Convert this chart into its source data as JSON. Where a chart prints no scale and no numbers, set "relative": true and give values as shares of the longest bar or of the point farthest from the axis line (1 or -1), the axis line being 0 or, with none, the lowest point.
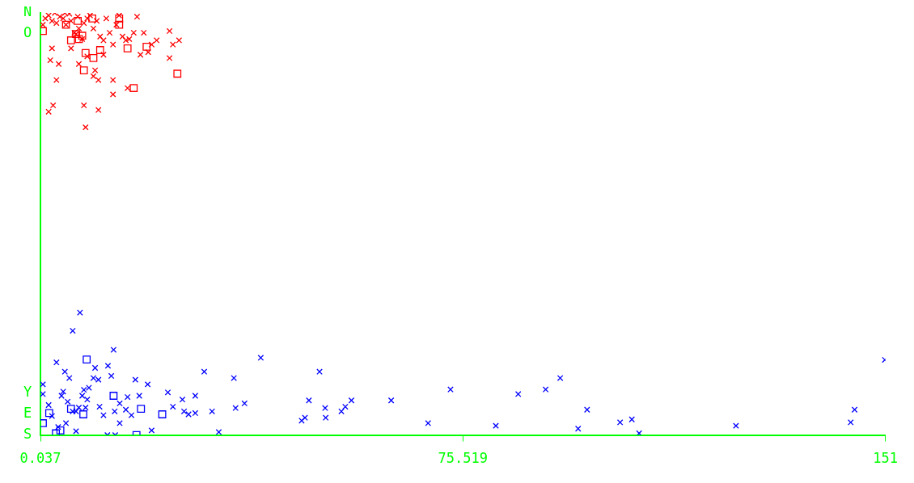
{
  "chart_data": {
    "type": "scatter",
    "xlim": [
      0.037,
      151
    ],
    "xticks": [
      0.037,
      75.519,
      151
    ],
    "relative": true,
    "annotations": [
      "NO",
      "YES"
    ],
    "grid": false,
    "legend": false,
    "series": [
      {
        "color": "#ff0000",
        "marker": "cross",
        "x": [
          0.47,
          0.9,
          1.5,
          2.1,
          2.6,
          2.9,
          3.5,
          4.1,
          4.6,
          5.2,
          5.5,
          6.1,
          6.7,
          6.9,
          7.5,
          7.8,
          8.4,
          8.9,
          9.5,
          10.1,
          10.7,
          11.3,
          11.8,
          12.4,
          13.0,
          13.6,
          14.1,
          14.7,
          15.3,
          15.9,
          16.7,
          17.3,
          17.9,
          18.5,
          19.3,
          19.9,
          20.8,
          23.1,
          23.1,
          23.7,
          24.8,
          2.1,
          1.8,
          2.9,
          3.3,
          2.3,
          1.5,
          7.8,
          10.4,
          8.1,
          9.5,
          10.4,
          13.0,
          13.0,
          15.6,
          5.5,
          8.4,
          11.3,
          6.9,
          9.8,
          6.4,
          4.4
        ],
        "values": [
          0.972,
          0.987,
          0.994,
          0.981,
          1.0,
          0.976,
          0.991,
          0.987,
          0.972,
          0.998,
          0.981,
          0.953,
          0.991,
          0.963,
          0.938,
          0.976,
          0.987,
          0.994,
          0.963,
          0.981,
          0.944,
          0.935,
          0.987,
          0.953,
          0.925,
          0.972,
          0.994,
          0.944,
          0.935,
          0.938,
          0.953,
          0.991,
          0.901,
          0.953,
          0.907,
          0.925,
          0.935,
          0.957,
          0.893,
          0.925,
          0.935,
          0.916,
          0.888,
          0.841,
          0.879,
          0.781,
          0.766,
          0.781,
          0.77,
          0.729,
          0.85,
          0.841,
          0.841,
          0.807,
          0.822,
          0.916,
          0.897,
          0.901,
          0.879,
          0.864,
          0.95,
          1.0
        ]
      },
      {
        "color": "#ff0000",
        "marker": "square",
        "x": [
          0.47,
          4.6,
          5.5,
          6.4,
          6.9,
          7.5,
          8.1,
          7.8,
          9.3,
          9.5,
          10.7,
          14.1,
          14.1,
          15.6,
          16.7,
          19.0,
          24.5,
          6.7
        ],
        "values": [
          0.957,
          0.972,
          0.935,
          0.95,
          0.938,
          0.946,
          0.905,
          0.864,
          0.987,
          0.893,
          0.912,
          0.987,
          0.972,
          0.916,
          0.822,
          0.92,
          0.856,
          0.981
        ]
      },
      {
        "color": "#0000ff",
        "marker": "cross",
        "x": [
          7.1,
          5.8,
          13.1,
          2.9,
          4.4,
          5.2,
          0.47,
          0.47,
          9.8,
          9.5,
          12.1,
          12.7,
          10.4,
          8.7,
          7.8,
          7.5,
          8.4,
          3.8,
          4.1,
          4.9,
          5.8,
          6.9,
          8.1,
          6.4,
          1.5,
          2.1,
          4.6,
          6.4,
          3.2,
          17.0,
          19.2,
          17.7,
          15.6,
          14.2,
          13.3,
          11.3,
          10.6,
          15.3,
          16.3,
          14.2,
          12.0,
          13.4,
          19.9,
          22.8,
          23.7,
          25.4,
          25.7,
          27.7,
          27.7,
          26.5,
          29.3,
          30.7,
          31.9,
          34.6,
          34.9,
          36.5,
          39.4,
          49.9,
          46.7,
          47.3,
          48.0,
          50.9,
          51.0,
          53.8,
          54.5,
          55.6,
          62.7,
          69.3,
          73.3,
          81.4,
          85.4,
          90.3,
          92.9,
          96.1,
          97.7,
          103.6,
          105.7,
          107.0,
          124.3,
          144.8,
          145.5,
          150.9
        ],
        "values": [
          0.29,
          0.247,
          0.202,
          0.172,
          0.15,
          0.135,
          0.12,
          0.097,
          0.159,
          0.135,
          0.164,
          0.14,
          0.131,
          0.112,
          0.107,
          0.093,
          0.084,
          0.093,
          0.103,
          0.079,
          0.056,
          0.065,
          0.065,
          0.056,
          0.071,
          0.045,
          0.028,
          0.009,
          0.019,
          0.131,
          0.12,
          0.093,
          0.09,
          0.075,
          0.056,
          0.047,
          0.067,
          0.06,
          0.047,
          0.028,
          0.0,
          0.0,
          0.011,
          0.101,
          0.067,
          0.084,
          0.056,
          0.093,
          0.052,
          0.049,
          0.15,
          0.056,
          0.007,
          0.135,
          0.064,
          0.075,
          0.183,
          0.15,
          0.034,
          0.041,
          0.082,
          0.064,
          0.041,
          0.056,
          0.067,
          0.082,
          0.082,
          0.028,
          0.108,
          0.022,
          0.097,
          0.108,
          0.135,
          0.015,
          0.06,
          0.03,
          0.037,
          0.004,
          0.022,
          0.03,
          0.06,
          0.178
        ]
      },
      {
        "color": "#0000ff",
        "marker": "square",
        "x": [
          8.3,
          1.6,
          0.47,
          5.5,
          7.7,
          13.1,
          18.0,
          21.8,
          3.6,
          2.8,
          17.2
        ],
        "values": [
          0.179,
          0.052,
          0.028,
          0.062,
          0.049,
          0.093,
          0.062,
          0.049,
          0.011,
          0.004,
          0.0
        ]
      }
    ]
  }
}
